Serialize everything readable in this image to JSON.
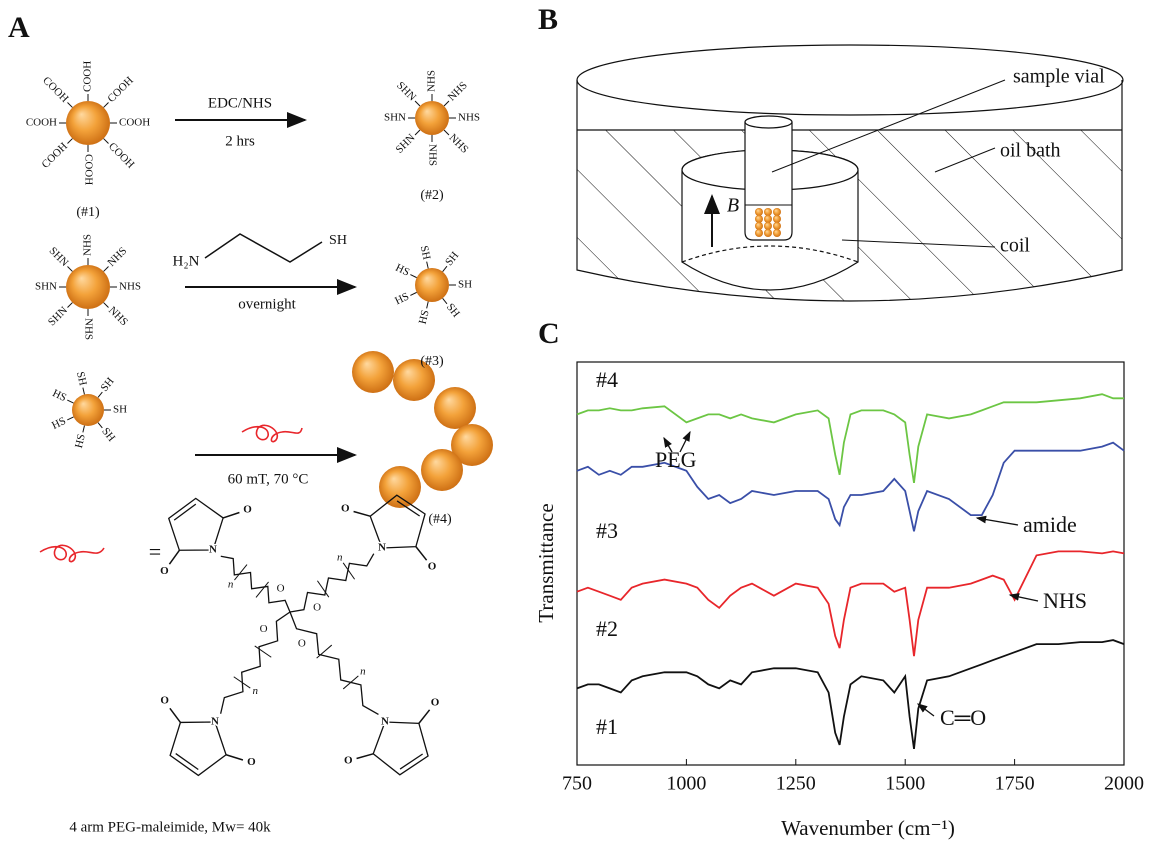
{
  "panel_a": {
    "label": "A",
    "particles": [
      {
        "label": "(#1)",
        "groups": [
          "COOH",
          "COOH",
          "COOH",
          "COOH",
          "COOH",
          "COOH",
          "COOH",
          "COOH"
        ]
      },
      {
        "label": "(#2)",
        "groups": [
          "NHS",
          "NHS",
          "NHS",
          "SHN",
          "SHN",
          "SHN",
          "NHS",
          "NHS"
        ]
      },
      {
        "groups": [
          "NHS",
          "NHS",
          "NHS",
          "SHN",
          "SHN",
          "SHN",
          "NHS",
          "NHS"
        ]
      },
      {
        "label": "(#3)",
        "groups": [
          "SH",
          "SH",
          "HS",
          "HS",
          "HS",
          "SH",
          "SH"
        ]
      },
      {
        "groups": [
          "SH",
          "SH",
          "HS",
          "HS",
          "HS",
          "SH",
          "SH"
        ]
      }
    ],
    "step1": {
      "reagent": "EDC/NHS",
      "condition": "2 hrs"
    },
    "step2": {
      "amine": "H₂N",
      "thiol": "SH",
      "condition": "overnight"
    },
    "step3": {
      "condition": "60 mT,  70 °C"
    },
    "cluster_label": "(#4)",
    "equals": "=",
    "atoms": {
      "nitrogen": "N",
      "oxygen": "O",
      "repeat": "n"
    },
    "caption": "4 arm PEG-maleimide, Mw= 40k"
  },
  "panel_b": {
    "label": "B",
    "field": "B",
    "labels": [
      "sample vial",
      "oil bath",
      "coil"
    ]
  },
  "chart_data": {
    "type": "line",
    "panel_label": "C",
    "x_label": "Wavenumber (cm⁻¹)",
    "y_label": "Transmittance",
    "x": [
      750,
      775,
      800,
      825,
      850,
      875,
      900,
      950,
      1000,
      1025,
      1050,
      1075,
      1100,
      1125,
      1150,
      1200,
      1250,
      1300,
      1325,
      1340,
      1350,
      1360,
      1375,
      1400,
      1450,
      1475,
      1500,
      1510,
      1520,
      1530,
      1550,
      1600,
      1650,
      1675,
      1700,
      1725,
      1750,
      1800,
      1850,
      1900,
      1950,
      1975,
      2000
    ],
    "xlim": [
      750,
      2000
    ],
    "xticks": [
      750,
      1000,
      1250,
      1500,
      1750,
      2000
    ],
    "ylim": [
      0,
      100
    ],
    "series": [
      {
        "name": "#4",
        "color": "#6cc644",
        "values": [
          87,
          88,
          88,
          88.5,
          88,
          88,
          88.5,
          89,
          85,
          86,
          87,
          87,
          86,
          87,
          86,
          85,
          87,
          88,
          86,
          77,
          72,
          80,
          87,
          88,
          88,
          87,
          85,
          77,
          70,
          79,
          87,
          86,
          87,
          88,
          89,
          90,
          90,
          90,
          90.5,
          91,
          92,
          91,
          91
        ]
      },
      {
        "name": "#3",
        "color": "#3a4fa8",
        "values": [
          73,
          74,
          72,
          73,
          72,
          74,
          74,
          75,
          73,
          69,
          66,
          67,
          65,
          66,
          68,
          67,
          68,
          68,
          66,
          61,
          59.5,
          64,
          67,
          67,
          68,
          71,
          68,
          63,
          58,
          63,
          68,
          66,
          62,
          62,
          67,
          75,
          78,
          78,
          78,
          78,
          79,
          80,
          78
        ]
      },
      {
        "name": "#2",
        "color": "#e8262b",
        "values": [
          43,
          44,
          43,
          42,
          41,
          44,
          45,
          46,
          45,
          44,
          41,
          39,
          42,
          44,
          45,
          42,
          45,
          44,
          40,
          32,
          29,
          36,
          44,
          45,
          45,
          43,
          44,
          36,
          27,
          36,
          44,
          44,
          45,
          46,
          47,
          46,
          41,
          52,
          53,
          53,
          52.5,
          53,
          52.5
        ]
      },
      {
        "name": "#1",
        "color": "#111111",
        "values": [
          19,
          20,
          20,
          19,
          18,
          21,
          22,
          23,
          23,
          22,
          20,
          19,
          21,
          20,
          23,
          24,
          24,
          23,
          18,
          8,
          5,
          12,
          20,
          22,
          21,
          18,
          22,
          12,
          4,
          14,
          21,
          22,
          24,
          25,
          26,
          27,
          28,
          30,
          30,
          30.5,
          30.5,
          31,
          30
        ]
      }
    ],
    "annotations": [
      "PEG",
      "amide",
      "NHS",
      "C═O"
    ]
  }
}
